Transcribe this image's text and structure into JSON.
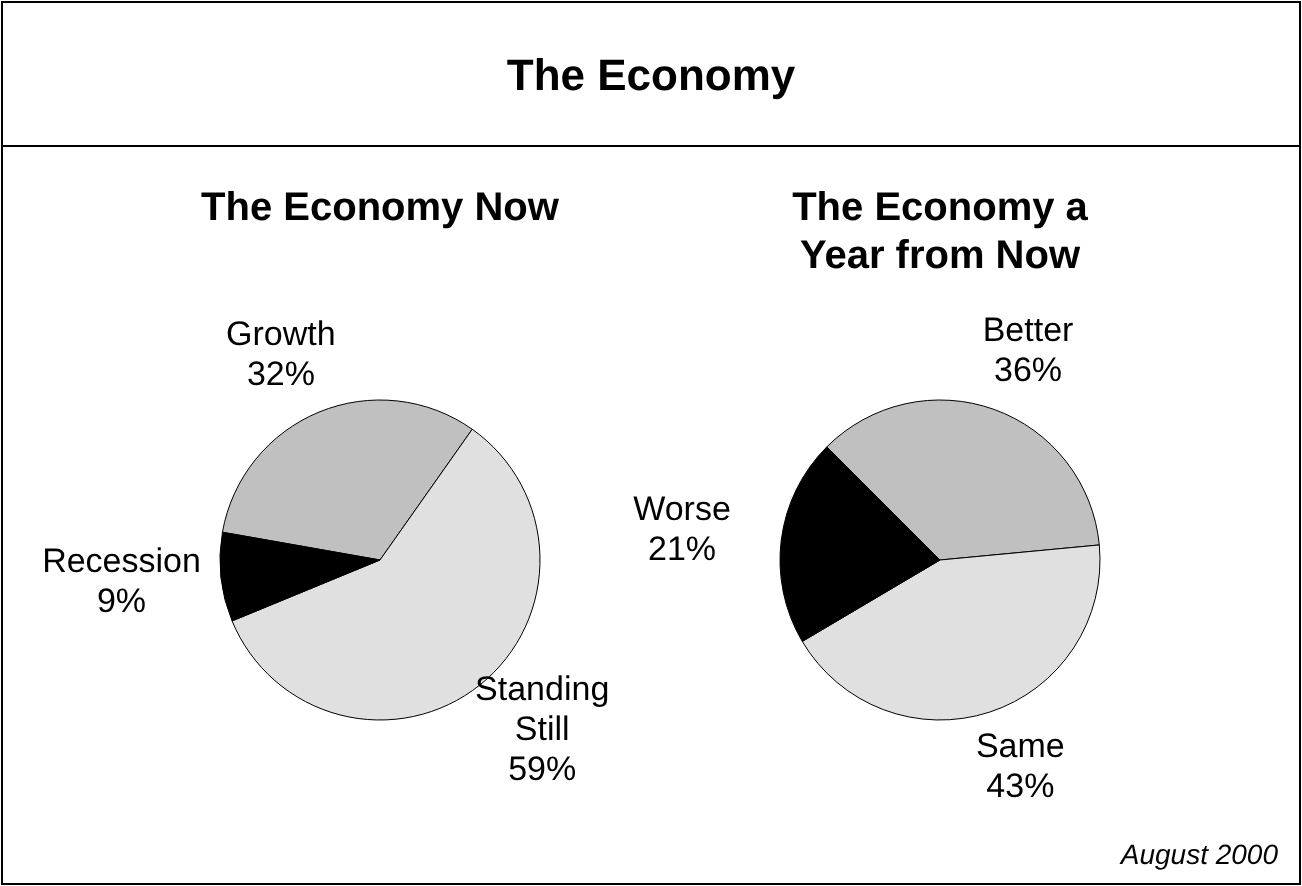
{
  "chart_data": [
    {
      "type": "pie",
      "title": "The Economy Now",
      "annotations": [
        "The Economy"
      ],
      "categories": [
        "Growth",
        "Standing Still",
        "Recession"
      ],
      "values": [
        32,
        59,
        9
      ],
      "value_labels": [
        "32%",
        "59%",
        "9%"
      ],
      "colors": [
        "#c0c0c0",
        "#e0e0e0",
        "#000000"
      ]
    },
    {
      "type": "pie",
      "title": "The Economy a Year from Now",
      "annotations": [
        "August 2000"
      ],
      "categories": [
        "Better",
        "Same",
        "Worse"
      ],
      "values": [
        36,
        43,
        21
      ],
      "value_labels": [
        "36%",
        "43%",
        "21%"
      ],
      "colors": [
        "#c0c0c0",
        "#e0e0e0",
        "#000000"
      ]
    }
  ]
}
